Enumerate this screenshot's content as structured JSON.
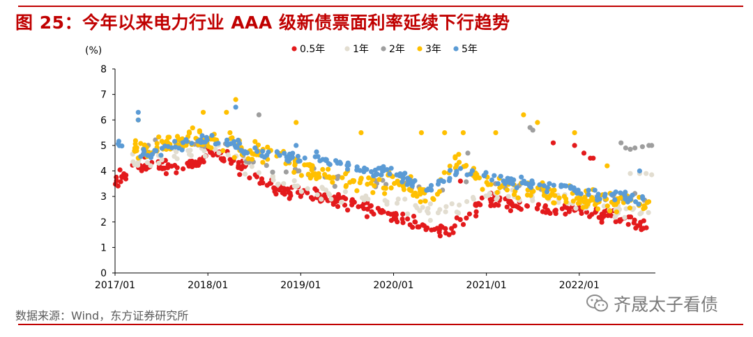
{
  "title": "图 25：今年以来电力行业 AAA 级新债票面利率延续下行趋势",
  "source": "数据来源：Wind，东方证券研究所",
  "watermark": "齐晟太子看债",
  "chart_data": {
    "type": "scatter",
    "title": "今年以来电力行业 AAA 级新债票面利率延续下行趋势",
    "ylabel": "(%)",
    "xlabel": "",
    "ylim": [
      0,
      8
    ],
    "yticks": [
      0,
      1,
      2,
      3,
      4,
      5,
      6,
      7,
      8
    ],
    "xlim": [
      2017.0,
      2022.82
    ],
    "xticks": [
      {
        "value": 2017.0,
        "label": "2017/01"
      },
      {
        "value": 2018.0,
        "label": "2018/01"
      },
      {
        "value": 2019.0,
        "label": "2019/01"
      },
      {
        "value": 2020.0,
        "label": "2020/01"
      },
      {
        "value": 2021.0,
        "label": "2021/01"
      },
      {
        "value": 2022.0,
        "label": "2022/01"
      }
    ],
    "legend_position": "top",
    "series": [
      {
        "name": "0.5年",
        "color": "#e31a1c",
        "knots": [
          [
            2017.0,
            3.7
          ],
          [
            2017.1,
            3.8
          ],
          [
            2017.25,
            4.2
          ],
          [
            2017.6,
            4.2
          ],
          [
            2017.9,
            4.3
          ],
          [
            2018.0,
            4.9
          ],
          [
            2018.15,
            4.6
          ],
          [
            2018.35,
            4.2
          ],
          [
            2018.5,
            3.8
          ],
          [
            2018.75,
            3.3
          ],
          [
            2019.0,
            3.1
          ],
          [
            2019.3,
            2.9
          ],
          [
            2019.6,
            2.7
          ],
          [
            2019.9,
            2.4
          ],
          [
            2020.0,
            2.1
          ],
          [
            2020.15,
            2.1
          ],
          [
            2020.3,
            1.8
          ],
          [
            2020.5,
            1.6
          ],
          [
            2020.7,
            2.0
          ],
          [
            2020.9,
            2.6
          ],
          [
            2021.0,
            2.8
          ],
          [
            2021.2,
            2.8
          ],
          [
            2021.5,
            2.5
          ],
          [
            2021.7,
            2.4
          ],
          [
            2021.9,
            2.5
          ],
          [
            2022.1,
            2.4
          ],
          [
            2022.3,
            2.3
          ],
          [
            2022.5,
            2.1
          ],
          [
            2022.6,
            1.9
          ],
          [
            2022.75,
            1.8
          ]
        ],
        "spread": 0.25,
        "count": 330,
        "seed": 11,
        "outliers": [
          [
            2021.72,
            5.1
          ],
          [
            2021.95,
            5.0
          ],
          [
            2022.05,
            4.7
          ],
          [
            2022.12,
            4.5
          ],
          [
            2022.15,
            4.5
          ],
          [
            2020.72,
            3.6
          ],
          [
            2021.1,
            3.5
          ]
        ]
      },
      {
        "name": "1年",
        "color": "#e2ddd0",
        "knots": [
          [
            2017.15,
            4.4
          ],
          [
            2017.6,
            4.6
          ],
          [
            2018.0,
            4.8
          ],
          [
            2018.3,
            4.5
          ],
          [
            2018.6,
            3.9
          ],
          [
            2019.0,
            3.3
          ],
          [
            2019.4,
            3.0
          ],
          [
            2019.8,
            2.9
          ],
          [
            2020.1,
            2.7
          ],
          [
            2020.4,
            2.4
          ],
          [
            2020.7,
            2.6
          ],
          [
            2021.0,
            3.1
          ],
          [
            2021.4,
            3.1
          ],
          [
            2021.7,
            3.0
          ],
          [
            2022.0,
            2.8
          ],
          [
            2022.4,
            2.5
          ],
          [
            2022.75,
            2.4
          ]
        ],
        "spread": 0.3,
        "count": 140,
        "seed": 23,
        "outliers": [
          [
            2022.55,
            3.9
          ],
          [
            2022.65,
            3.9
          ],
          [
            2022.72,
            3.9
          ],
          [
            2022.78,
            3.85
          ]
        ]
      },
      {
        "name": "2年",
        "color": "#9e9e9e",
        "knots": [
          [
            2017.3,
            4.9
          ],
          [
            2017.7,
            5.2
          ],
          [
            2018.0,
            5.0
          ],
          [
            2018.5,
            4.4
          ],
          [
            2019.0,
            3.9
          ],
          [
            2019.5,
            3.6
          ],
          [
            2020.0,
            3.5
          ],
          [
            2020.5,
            3.3
          ],
          [
            2021.0,
            3.6
          ],
          [
            2021.5,
            3.3
          ],
          [
            2022.0,
            3.1
          ],
          [
            2022.75,
            2.9
          ]
        ],
        "spread": 0.25,
        "count": 60,
        "seed": 37,
        "outliers": [
          [
            2018.55,
            6.2
          ],
          [
            2021.47,
            5.7
          ],
          [
            2021.5,
            5.6
          ],
          [
            2022.45,
            5.1
          ],
          [
            2022.5,
            4.9
          ],
          [
            2022.55,
            4.85
          ],
          [
            2022.6,
            4.9
          ],
          [
            2022.68,
            4.95
          ],
          [
            2022.75,
            5.0
          ],
          [
            2022.78,
            5.0
          ],
          [
            2020.8,
            4.7
          ]
        ]
      },
      {
        "name": "3年",
        "color": "#ffc000",
        "knots": [
          [
            2017.2,
            4.9
          ],
          [
            2017.5,
            5.0
          ],
          [
            2017.8,
            5.2
          ],
          [
            2018.0,
            5.3
          ],
          [
            2018.3,
            5.0
          ],
          [
            2018.6,
            4.7
          ],
          [
            2018.9,
            4.3
          ],
          [
            2019.2,
            3.8
          ],
          [
            2019.5,
            3.6
          ],
          [
            2019.8,
            3.5
          ],
          [
            2020.1,
            3.6
          ],
          [
            2020.3,
            3.1
          ],
          [
            2020.4,
            2.7
          ],
          [
            2020.55,
            3.8
          ],
          [
            2020.7,
            4.4
          ],
          [
            2020.8,
            4.2
          ],
          [
            2020.95,
            3.6
          ],
          [
            2021.2,
            3.3
          ],
          [
            2021.5,
            3.2
          ],
          [
            2021.8,
            3.0
          ],
          [
            2022.0,
            3.0
          ],
          [
            2022.3,
            2.8
          ],
          [
            2022.6,
            2.7
          ],
          [
            2022.75,
            2.7
          ]
        ],
        "spread": 0.35,
        "count": 330,
        "seed": 53,
        "outliers": [
          [
            2017.25,
            6.0
          ],
          [
            2017.95,
            6.3
          ],
          [
            2018.2,
            6.3
          ],
          [
            2018.3,
            6.8
          ],
          [
            2018.95,
            5.9
          ],
          [
            2019.65,
            5.5
          ],
          [
            2020.3,
            5.5
          ],
          [
            2020.55,
            5.5
          ],
          [
            2020.75,
            5.5
          ],
          [
            2021.1,
            5.5
          ],
          [
            2021.4,
            6.2
          ],
          [
            2021.55,
            5.9
          ],
          [
            2021.95,
            5.5
          ],
          [
            2022.3,
            4.2
          ]
        ]
      },
      {
        "name": "5年",
        "color": "#5b9bd5",
        "knots": [
          [
            2017.0,
            5.2
          ],
          [
            2017.25,
            4.7
          ],
          [
            2017.5,
            4.8
          ],
          [
            2017.8,
            5.1
          ],
          [
            2018.0,
            5.3
          ],
          [
            2018.3,
            5.0
          ],
          [
            2018.6,
            4.7
          ],
          [
            2018.9,
            4.5
          ],
          [
            2019.2,
            4.5
          ],
          [
            2019.4,
            4.3
          ],
          [
            2019.7,
            4.0
          ],
          [
            2020.0,
            4.0
          ],
          [
            2020.2,
            3.6
          ],
          [
            2020.35,
            3.3
          ],
          [
            2020.5,
            3.5
          ],
          [
            2020.7,
            4.0
          ],
          [
            2020.9,
            3.8
          ],
          [
            2021.0,
            3.7
          ],
          [
            2021.3,
            3.6
          ],
          [
            2021.6,
            3.4
          ],
          [
            2021.85,
            3.3
          ],
          [
            2022.1,
            3.1
          ],
          [
            2022.4,
            3.0
          ],
          [
            2022.75,
            2.9
          ]
        ],
        "spread": 0.2,
        "count": 230,
        "seed": 71,
        "outliers": [
          [
            2017.25,
            6.3
          ],
          [
            2017.25,
            6.0
          ],
          [
            2018.3,
            6.5
          ],
          [
            2018.95,
            5.0
          ],
          [
            2022.65,
            4.0
          ]
        ]
      }
    ]
  }
}
